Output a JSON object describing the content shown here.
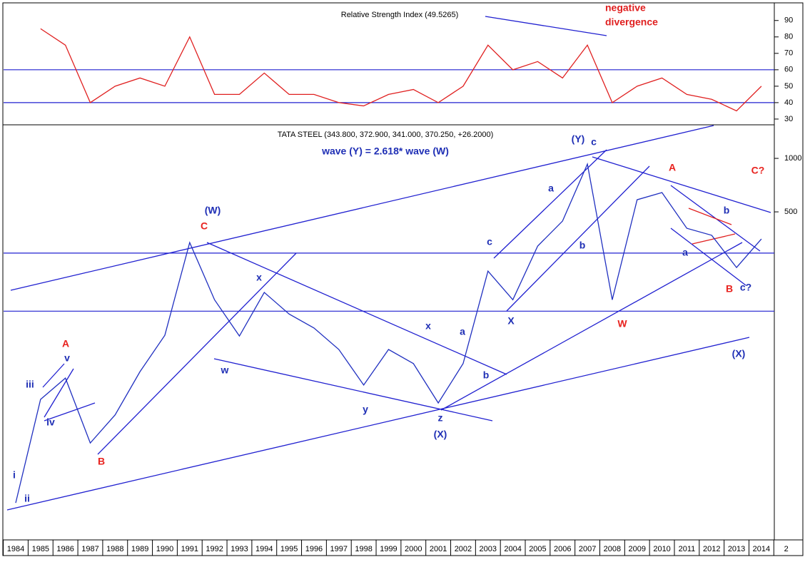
{
  "chart_data": [
    {
      "type": "line",
      "title": "Relative Strength Index (49.5265)",
      "color": "#e02020",
      "values": [
        null,
        85,
        75,
        40,
        50,
        55,
        50,
        80,
        45,
        45,
        58,
        45,
        45,
        40,
        38,
        45,
        48,
        40,
        50,
        75,
        60,
        65,
        55,
        75,
        40,
        50,
        55,
        45,
        42,
        35,
        50,
        null
      ],
      "ylim": [
        26.5,
        99
      ],
      "yticks": [
        30,
        40,
        50,
        60,
        70,
        80,
        90
      ],
      "hlines": [
        40,
        60
      ],
      "hline_color": "#2020d0",
      "annotations": [
        {
          "text": "negative",
          "color": "#e02020"
        },
        {
          "text": "divergence",
          "color": "#e02020"
        }
      ]
    },
    {
      "type": "line",
      "title": "TATA STEEL (343.800, 372.900, 341.000, 370.250, +26.2000)",
      "subtitle": "wave (Y) = 2.618* wave (W)",
      "color": "#2030c0",
      "log_scale": true,
      "categories": [
        "1984",
        "1985",
        "1986",
        "1987",
        "1988",
        "1989",
        "1990",
        "1991",
        "1992",
        "1993",
        "1994",
        "1995",
        "1996",
        "1997",
        "1998",
        "1999",
        "2000",
        "2001",
        "2002",
        "2003",
        "2004",
        "2005",
        "2006",
        "2007",
        "2008",
        "2009",
        "2010",
        "2011",
        "2012",
        "2013",
        "2014",
        "2"
      ],
      "values": [
        11.5,
        44,
        58,
        25,
        36,
        63,
        101,
        336,
        160,
        100,
        176,
        133,
        111,
        84,
        53,
        84,
        70,
        42,
        70,
        232,
        160,
        321,
        444,
        929,
        160,
        585,
        642,
        404,
        369,
        243,
        352,
        null
      ],
      "ylim": [
        10.5,
        1545
      ],
      "yticks": [
        500,
        1000
      ],
      "hlines": [
        293,
        138
      ],
      "hline_color": "#2020d0",
      "annotations": [
        {
          "text": "i",
          "color": "#1f2fb5"
        },
        {
          "text": "ii",
          "color": "#1f2fb5"
        },
        {
          "text": "iii",
          "color": "#1f2fb5"
        },
        {
          "text": "iv",
          "color": "#1f2fb5"
        },
        {
          "text": "v",
          "color": "#1f2fb5"
        },
        {
          "text": "A",
          "color": "#e8231f"
        },
        {
          "text": "B",
          "color": "#e8231f"
        },
        {
          "text": "(W)",
          "color": "#1f2fb5"
        },
        {
          "text": "C",
          "color": "#e8231f"
        },
        {
          "text": "w",
          "color": "#1f2fb5"
        },
        {
          "text": "x",
          "color": "#1f2fb5"
        },
        {
          "text": "y",
          "color": "#1f2fb5"
        },
        {
          "text": "z",
          "color": "#1f2fb5"
        },
        {
          "text": "(X)",
          "color": "#1f2fb5"
        },
        {
          "text": "x",
          "color": "#1f2fb5"
        },
        {
          "text": "a",
          "color": "#1f2fb5"
        },
        {
          "text": "b",
          "color": "#1f2fb5"
        },
        {
          "text": "c",
          "color": "#1f2fb5"
        },
        {
          "text": "X",
          "color": "#1f2fb5"
        },
        {
          "text": "a",
          "color": "#1f2fb5"
        },
        {
          "text": "b",
          "color": "#1f2fb5"
        },
        {
          "text": "(Y)",
          "color": "#1f2fb5"
        },
        {
          "text": "c",
          "color": "#1f2fb5"
        },
        {
          "text": "W",
          "color": "#e8231f"
        },
        {
          "text": "A",
          "color": "#e8231f"
        },
        {
          "text": "C?",
          "color": "#e8231f"
        },
        {
          "text": "b",
          "color": "#1f2fb5"
        },
        {
          "text": "a",
          "color": "#1f2fb5"
        },
        {
          "text": "B",
          "color": "#e8231f"
        },
        {
          "text": "c?",
          "color": "#1f2fb5"
        },
        {
          "text": "(X)",
          "color": "#1f2fb5"
        }
      ]
    }
  ]
}
